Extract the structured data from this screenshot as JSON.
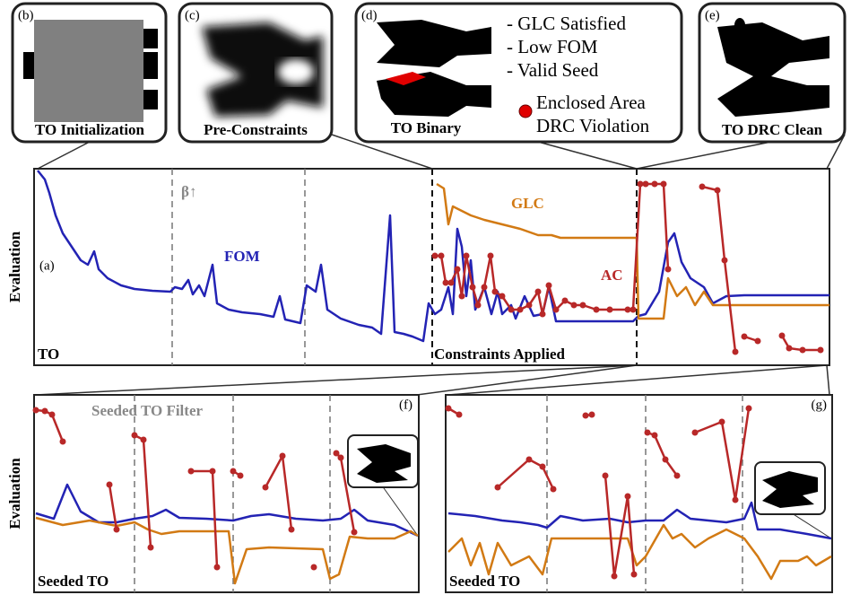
{
  "panels": {
    "b": {
      "tag": "(b)",
      "caption": "TO Initialization"
    },
    "c": {
      "tag": "(c)",
      "caption": "Pre-Constraints"
    },
    "d": {
      "tag": "(d)",
      "caption": "TO Binary",
      "notes": [
        "- GLC Satisfied",
        "- Low FOM",
        "- Valid Seed"
      ],
      "legend": [
        "Enclosed Area",
        "DRC Violation"
      ]
    },
    "e": {
      "tag": "(e)",
      "caption": "TO DRC Clean"
    }
  },
  "plots": [
    {
      "tag": "(a)",
      "ylabel": "Evaluation",
      "corner_label": "TO",
      "phase_label": "Constraints Applied",
      "divider_label": "β↑",
      "xlim": [
        0,
        887
      ],
      "ylim": [
        0,
        219
      ],
      "dividers": [
        154,
        302
      ],
      "series": [
        {
          "name": "FOM",
          "color": "#2323b4",
          "x": [
            4,
            12,
            17,
            24,
            32,
            42,
            52,
            60,
            67,
            72,
            82,
            97,
            112,
            132,
            152,
            157,
            165,
            172,
            177,
            184,
            190,
            199,
            204,
            217,
            232,
            252,
            267,
            274,
            280,
            297,
            304,
            314,
            320,
            327,
            342,
            362,
            377,
            387,
            397,
            402,
            412,
            422,
            434,
            440,
            447,
            454,
            462,
            467,
            472,
            477,
            482,
            487,
            492,
            502,
            510,
            517,
            522,
            532,
            537,
            547,
            557,
            567,
            574,
            582,
            612,
            642,
            668,
            674,
            682,
            697,
            707,
            714,
            722,
            732,
            747,
            757,
            772,
            792,
            832,
            887
          ],
          "values": [
            217,
            207,
            192,
            167,
            147,
            132,
            117,
            112,
            127,
            107,
            97,
            89,
            85,
            83,
            82,
            87,
            85,
            95,
            79,
            89,
            77,
            112,
            69,
            62,
            59,
            57,
            54,
            77,
            51,
            47,
            89,
            82,
            112,
            62,
            52,
            45,
            42,
            35,
            167,
            37,
            35,
            32,
            27,
            69,
            57,
            62,
            87,
            57,
            152,
            132,
            77,
            117,
            62,
            87,
            57,
            82,
            57,
            67,
            52,
            77,
            55,
            57,
            87,
            49,
            49,
            49,
            49,
            55,
            57,
            82,
            137,
            147,
            115,
            97,
            87,
            69,
            77,
            78,
            78,
            78
          ]
        },
        {
          "name": "GLC",
          "color": "#d27a14",
          "x": [
            449,
            457,
            462,
            467,
            477,
            487,
            502,
            522,
            542,
            562,
            577,
            587,
            612,
            668,
            672,
            674,
            702,
            707,
            717,
            727,
            737,
            747,
            757,
            772,
            887
          ],
          "values": [
            202,
            197,
            157,
            177,
            172,
            167,
            162,
            157,
            152,
            145,
            145,
            142,
            142,
            142,
            142,
            52,
            52,
            97,
            77,
            87,
            67,
            82,
            67,
            67,
            67
          ]
        },
        {
          "name": "AC",
          "color": "#b82828",
          "dots": true,
          "x": [
            447,
            454,
            459,
            465,
            472,
            477,
            482,
            489,
            495,
            502,
            509,
            514,
            522,
            532,
            542,
            552,
            562,
            567,
            574,
            582,
            592,
            602,
            612,
            627,
            642,
            662,
            668,
            676,
            682,
            692,
            702,
            707,
            726,
            745,
            762,
            770,
            782,
            785,
            792,
            807,
            820,
            834,
            842,
            857,
            877
          ],
          "values": [
            122,
            122,
            92,
            92,
            107,
            77,
            122,
            87,
            67,
            87,
            122,
            82,
            77,
            62,
            62,
            67,
            82,
            57,
            89,
            62,
            72,
            67,
            67,
            62,
            62,
            62,
            62,
            202,
            202,
            202,
            202,
            107,
            null,
            199,
            195,
            117,
            15,
            null,
            32,
            27,
            null,
            33,
            19,
            17,
            17
          ]
        }
      ]
    },
    {
      "tag": "(f)",
      "ylabel": "Evaluation",
      "corner_label": "Seeded TO",
      "divider_label": "Seeded TO Filter",
      "xlim": [
        0,
        429
      ],
      "ylim": [
        0,
        220
      ],
      "dividers": [
        112,
        222,
        330
      ],
      "series": [
        {
          "color": "#2323b4",
          "x": [
            2,
            22,
            37,
            52,
            72,
            92,
            112,
            132,
            147,
            162,
            192,
            222,
            242,
            262,
            292,
            322,
            342,
            357,
            372,
            402,
            428
          ],
          "values": [
            88,
            82,
            120,
            90,
            78,
            78,
            82,
            85,
            92,
            83,
            82,
            80,
            85,
            87,
            82,
            80,
            82,
            92,
            80,
            75,
            63
          ]
        },
        {
          "color": "#d27a14",
          "x": [
            2,
            32,
            62,
            92,
            112,
            127,
            142,
            162,
            192,
            217,
            224,
            237,
            262,
            322,
            330,
            340,
            352,
            372,
            402,
            420,
            428
          ],
          "values": [
            83,
            75,
            80,
            74,
            78,
            70,
            65,
            68,
            68,
            68,
            10,
            48,
            50,
            48,
            15,
            20,
            62,
            60,
            60,
            68,
            63
          ]
        },
        {
          "color": "#b82828",
          "dots": true,
          "x": [
            2,
            12,
            20,
            32,
            58,
            84,
            92,
            102,
            112,
            122,
            130,
            152,
            175,
            199,
            204,
            214,
            222,
            230,
            244,
            258,
            277,
            287,
            300,
            312,
            324,
            337,
            342,
            357
          ],
          "values": [
            203,
            202,
            198,
            168,
            null,
            120,
            70,
            null,
            175,
            170,
            50,
            null,
            135,
            135,
            28,
            null,
            135,
            130,
            null,
            117,
            152,
            70,
            null,
            28,
            null,
            155,
            150,
            67
          ]
        }
      ]
    },
    {
      "tag": "(g)",
      "corner_label": "Seeded TO",
      "xlim": [
        0,
        431
      ],
      "ylim": [
        0,
        220
      ],
      "dividers": [
        113,
        223,
        331
      ],
      "series": [
        {
          "color": "#2323b4",
          "x": [
            3,
            33,
            63,
            83,
            103,
            113,
            128,
            153,
            183,
            203,
            223,
            243,
            258,
            273,
            293,
            313,
            333,
            341,
            348,
            373,
            403,
            430
          ],
          "values": [
            88,
            85,
            80,
            78,
            75,
            72,
            85,
            80,
            82,
            78,
            80,
            80,
            92,
            82,
            80,
            78,
            82,
            100,
            70,
            70,
            65,
            60
          ]
        },
        {
          "color": "#d27a14",
          "x": [
            3,
            18,
            28,
            38,
            48,
            58,
            73,
            93,
            108,
            118,
            143,
            163,
            183,
            203,
            213,
            223,
            243,
            253,
            263,
            278,
            293,
            313,
            333,
            348,
            363,
            373,
            393,
            403,
            413,
            430
          ],
          "values": [
            45,
            60,
            30,
            55,
            20,
            55,
            30,
            40,
            20,
            60,
            60,
            60,
            60,
            60,
            30,
            40,
            75,
            60,
            65,
            50,
            60,
            70,
            60,
            40,
            15,
            35,
            35,
            40,
            30,
            40
          ]
        },
        {
          "color": "#b82828",
          "dots": true,
          "x": [
            3,
            15,
            35,
            58,
            93,
            108,
            120,
            138,
            156,
            163,
            170,
            178,
            188,
            203,
            210,
            218,
            225,
            233,
            245,
            258,
            268,
            278,
            308,
            323,
            338
          ],
          "values": [
            205,
            198,
            null,
            117,
            148,
            140,
            115,
            null,
            197,
            198,
            null,
            130,
            18,
            107,
            20,
            null,
            178,
            175,
            148,
            130,
            null,
            178,
            190,
            103,
            205
          ]
        }
      ]
    }
  ]
}
